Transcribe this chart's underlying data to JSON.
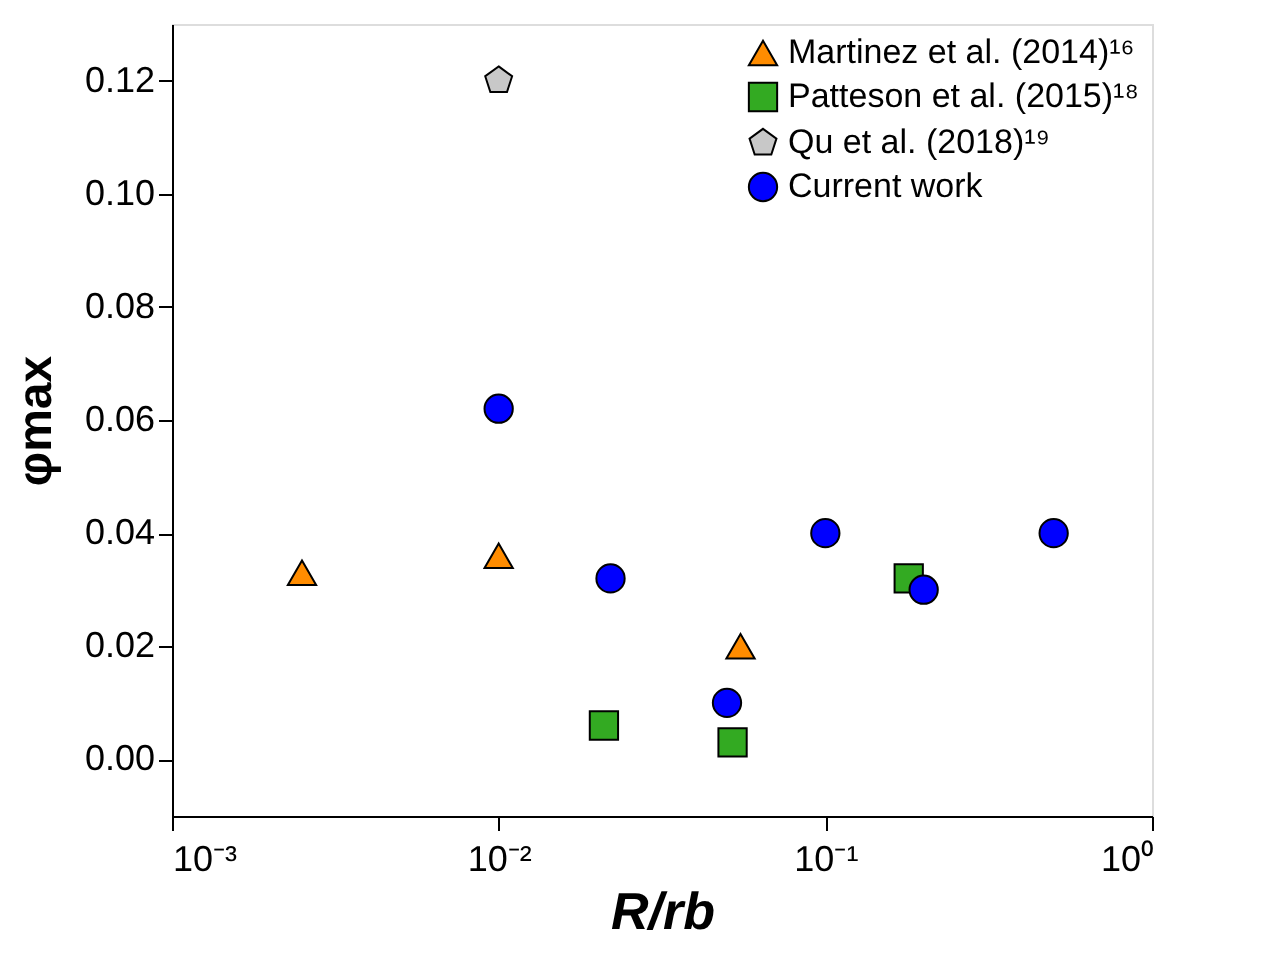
{
  "chart_data": {
    "type": "scatter",
    "xlabel": "R/rb",
    "ylabel": "φmax",
    "log": "x",
    "xlim": [
      0.001,
      1
    ],
    "xticks": [
      {
        "value": 0.001,
        "label": "10⁻³"
      },
      {
        "value": 0.01,
        "label": "10⁻²"
      },
      {
        "value": 0.1,
        "label": "10⁻¹"
      },
      {
        "value": 1,
        "label": "10⁰"
      }
    ],
    "ylim": [
      -0.01,
      0.13
    ],
    "yticks": [
      {
        "value": 0,
        "label": "0.00"
      },
      {
        "value": 0.02,
        "label": "0.02"
      },
      {
        "value": 0.04,
        "label": "0.04"
      },
      {
        "value": 0.06,
        "label": "0.06"
      },
      {
        "value": 0.08,
        "label": "0.08"
      },
      {
        "value": 0.1,
        "label": "0.10"
      },
      {
        "value": 0.12,
        "label": "0.12"
      }
    ],
    "grid": false,
    "legend": "top right",
    "series": [
      {
        "name": "Martinez et al. (2014)¹⁶",
        "color": "#ff8c00",
        "marker": "triangle",
        "x": [
          0.0025,
          0.01,
          0.055
        ],
        "values": [
          0.033,
          0.036,
          0.02
        ]
      },
      {
        "name": "Patteson et al. (2015)¹⁸",
        "color": "#33aa22",
        "marker": "square",
        "x": [
          0.021,
          0.052,
          0.18
        ],
        "values": [
          0.006,
          0.003,
          0.032
        ]
      },
      {
        "name": "Qu et al. (2018)¹⁹",
        "color": "#c8c8c8",
        "x": [
          0.01
        ],
        "values": [
          0.12
        ]
      },
      {
        "name": "Current work",
        "color": "#0000ff",
        "marker": "circle",
        "x": [
          0.01,
          0.022,
          0.05,
          0.1,
          0.2,
          0.5
        ],
        "values": [
          0.062,
          0.032,
          0.01,
          0.04,
          0.03,
          0.04
        ]
      }
    ]
  }
}
